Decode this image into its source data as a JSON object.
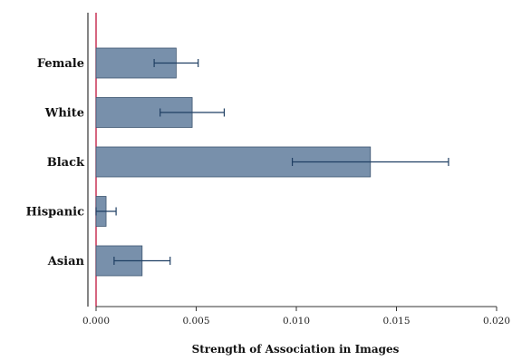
{
  "chart_data": {
    "type": "bar",
    "orientation": "horizontal",
    "categories": [
      "Female",
      "White",
      "Black",
      "Hispanic",
      "Asian"
    ],
    "values": [
      0.004,
      0.0048,
      0.0137,
      0.0005,
      0.0023
    ],
    "error_low": [
      0.0029,
      0.0032,
      0.0098,
      0.0,
      0.0009
    ],
    "error_high": [
      0.0051,
      0.0064,
      0.0176,
      0.001,
      0.0037
    ],
    "title": "",
    "xlabel": "Strength of Association in Images",
    "ylabel": "",
    "xlim": [
      0.0,
      0.02
    ],
    "xticks": [
      "0.000",
      "0.005",
      "0.010",
      "0.015",
      "0.020"
    ],
    "xtick_values": [
      0.0,
      0.005,
      0.01,
      0.015,
      0.02
    ],
    "reference_line": 0.0,
    "grid": false,
    "legend": "none",
    "colors": {
      "bar_fill": "#7890ab",
      "bar_stroke": "#3d5570",
      "error_bar": "#1f3f63",
      "reference_line": "#c0143c",
      "axis": "#333333"
    }
  }
}
